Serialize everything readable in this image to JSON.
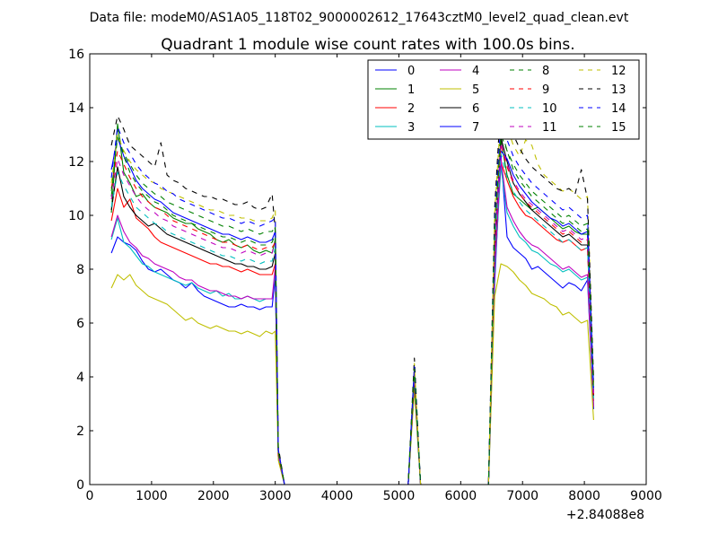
{
  "chart_data": {
    "type": "line",
    "suptitle": "Data file: modeM0/AS1A05_118T02_9000002612_17643cztM0_level2_quad_clean.evt",
    "title": "Quadrant 1 module wise count rates with 100.0s bins.",
    "xlabel": "",
    "ylabel": "",
    "x_offset_label": "+2.84088e8",
    "xlim": [
      0,
      9000
    ],
    "ylim": [
      0,
      16
    ],
    "x_ticks": [
      0,
      1000,
      2000,
      3000,
      4000,
      5000,
      6000,
      7000,
      8000,
      9000
    ],
    "y_ticks": [
      0,
      2,
      4,
      6,
      8,
      10,
      12,
      14,
      16
    ],
    "x": [
      350,
      450,
      550,
      650,
      750,
      850,
      950,
      1050,
      1150,
      1250,
      1350,
      1450,
      1550,
      1650,
      1750,
      1850,
      1950,
      2050,
      2150,
      2250,
      2350,
      2450,
      2550,
      2650,
      2750,
      2850,
      2950,
      3000,
      3050,
      3150,
      3250,
      5150,
      5250,
      5350,
      6450,
      6550,
      6650,
      6750,
      6850,
      6950,
      7050,
      7150,
      7250,
      7350,
      7450,
      7550,
      7650,
      7750,
      7850,
      7950,
      8050,
      8150
    ],
    "legend": {
      "location": "top-right",
      "columns": 4
    },
    "series": [
      {
        "name": "0",
        "color": "#0000ff",
        "dash": "solid",
        "values": [
          8.6,
          9.2,
          9.0,
          8.9,
          8.7,
          8.3,
          8.0,
          7.9,
          8.0,
          7.8,
          7.6,
          7.5,
          7.3,
          7.5,
          7.2,
          7.0,
          6.9,
          6.8,
          6.7,
          6.6,
          6.6,
          6.7,
          6.6,
          6.6,
          6.5,
          6.6,
          6.6,
          7.7,
          1.0,
          0.0,
          0.0,
          0.0,
          3.8,
          0.0,
          0.0,
          7.5,
          12.2,
          9.2,
          8.8,
          8.6,
          8.4,
          8.0,
          8.1,
          7.9,
          7.7,
          7.5,
          7.3,
          7.5,
          7.4,
          7.2,
          7.6,
          2.8
        ]
      },
      {
        "name": "1",
        "color": "#008000",
        "dash": "solid",
        "values": [
          10.1,
          13.4,
          11.6,
          11.2,
          10.7,
          10.8,
          10.5,
          10.3,
          10.2,
          10.1,
          9.9,
          9.8,
          9.7,
          9.7,
          9.5,
          9.4,
          9.3,
          9.1,
          9.0,
          9.1,
          8.9,
          8.8,
          8.9,
          8.7,
          8.6,
          8.7,
          8.6,
          9.1,
          1.1,
          0.0,
          0.0,
          0.0,
          4.0,
          0.0,
          0.0,
          8.7,
          12.8,
          11.5,
          10.8,
          10.6,
          10.4,
          10.2,
          10.3,
          10.1,
          9.9,
          9.7,
          9.5,
          9.6,
          9.4,
          9.3,
          9.3,
          3.3
        ]
      },
      {
        "name": "2",
        "color": "#ff0000",
        "dash": "solid",
        "values": [
          9.8,
          11.0,
          10.3,
          10.6,
          9.9,
          9.7,
          9.5,
          9.2,
          9.0,
          8.9,
          8.8,
          8.7,
          8.6,
          8.5,
          8.4,
          8.3,
          8.2,
          8.2,
          8.1,
          8.1,
          8.0,
          7.9,
          8.0,
          7.9,
          7.8,
          7.8,
          7.8,
          8.2,
          1.0,
          0.0,
          0.0,
          0.0,
          3.9,
          0.0,
          0.0,
          8.4,
          12.0,
          11.3,
          10.7,
          10.3,
          10.0,
          9.9,
          9.7,
          9.5,
          9.3,
          9.1,
          9.0,
          9.1,
          8.9,
          8.7,
          8.8,
          3.1
        ]
      },
      {
        "name": "3",
        "color": "#00bfbf",
        "dash": "solid",
        "values": [
          9.1,
          9.9,
          9.0,
          8.8,
          8.5,
          8.2,
          8.1,
          7.9,
          7.8,
          7.7,
          7.6,
          7.5,
          7.4,
          7.5,
          7.3,
          7.2,
          7.1,
          7.2,
          7.0,
          7.1,
          6.9,
          6.9,
          7.0,
          6.9,
          6.8,
          6.9,
          6.9,
          7.9,
          1.0,
          0.0,
          0.0,
          0.0,
          3.8,
          0.0,
          0.0,
          7.8,
          11.8,
          10.1,
          9.6,
          9.2,
          9.0,
          8.7,
          8.6,
          8.4,
          8.2,
          8.1,
          7.9,
          8.0,
          7.8,
          7.6,
          7.7,
          2.9
        ]
      },
      {
        "name": "4",
        "color": "#bf00bf",
        "dash": "solid",
        "values": [
          9.2,
          10.0,
          9.4,
          9.0,
          8.8,
          8.5,
          8.4,
          8.2,
          8.1,
          8.0,
          7.9,
          7.7,
          7.6,
          7.6,
          7.4,
          7.3,
          7.2,
          7.2,
          7.1,
          7.0,
          7.0,
          6.9,
          7.0,
          6.9,
          6.9,
          6.9,
          6.9,
          8.1,
          1.0,
          0.0,
          0.0,
          0.0,
          3.9,
          0.0,
          0.0,
          8.0,
          12.1,
          10.3,
          9.8,
          9.4,
          9.1,
          8.9,
          8.8,
          8.6,
          8.4,
          8.2,
          8.0,
          8.1,
          7.9,
          7.7,
          7.8,
          2.9
        ]
      },
      {
        "name": "5",
        "color": "#bfbf00",
        "dash": "solid",
        "values": [
          7.3,
          7.8,
          7.6,
          7.8,
          7.4,
          7.2,
          7.0,
          6.9,
          6.8,
          6.7,
          6.5,
          6.3,
          6.1,
          6.2,
          6.0,
          5.9,
          5.8,
          5.9,
          5.8,
          5.7,
          5.7,
          5.6,
          5.7,
          5.6,
          5.5,
          5.7,
          5.6,
          5.7,
          0.9,
          0.0,
          0.0,
          0.0,
          3.5,
          0.0,
          0.0,
          7.0,
          8.2,
          8.1,
          7.9,
          7.6,
          7.4,
          7.1,
          7.0,
          6.9,
          6.7,
          6.6,
          6.3,
          6.4,
          6.2,
          6.0,
          6.1,
          2.4
        ]
      },
      {
        "name": "6",
        "color": "#000000",
        "dash": "solid",
        "values": [
          10.2,
          11.8,
          10.7,
          10.3,
          10.0,
          9.8,
          9.6,
          9.7,
          9.5,
          9.3,
          9.2,
          9.1,
          9.0,
          8.9,
          8.8,
          8.7,
          8.6,
          8.5,
          8.4,
          8.3,
          8.2,
          8.2,
          8.1,
          8.1,
          8.0,
          8.0,
          8.1,
          8.6,
          1.1,
          0.0,
          0.0,
          0.0,
          3.9,
          0.0,
          0.0,
          8.8,
          12.9,
          12.0,
          11.2,
          10.8,
          10.5,
          10.2,
          10.0,
          9.8,
          9.6,
          9.4,
          9.2,
          9.3,
          9.1,
          8.9,
          8.9,
          3.3
        ]
      },
      {
        "name": "7",
        "color": "#0000ff",
        "dash": "solid",
        "values": [
          11.7,
          12.9,
          12.2,
          11.8,
          11.3,
          11.0,
          10.8,
          10.6,
          10.5,
          10.3,
          10.1,
          10.0,
          9.9,
          9.8,
          9.7,
          9.6,
          9.5,
          9.4,
          9.3,
          9.3,
          9.2,
          9.1,
          9.2,
          9.1,
          9.0,
          9.0,
          9.1,
          9.4,
          1.2,
          0.0,
          0.0,
          0.0,
          4.2,
          0.0,
          0.0,
          9.2,
          12.4,
          12.1,
          11.5,
          11.1,
          10.8,
          10.5,
          10.3,
          10.1,
          9.9,
          9.8,
          9.6,
          9.7,
          9.5,
          9.3,
          9.4,
          3.4
        ]
      },
      {
        "name": "8",
        "color": "#008000",
        "dash": "dashed",
        "values": [
          10.7,
          13.2,
          12.2,
          11.6,
          11.2,
          10.9,
          10.7,
          10.5,
          10.4,
          10.2,
          10.0,
          9.9,
          9.8,
          9.7,
          9.6,
          9.5,
          9.4,
          9.3,
          9.2,
          9.2,
          9.1,
          9.0,
          9.1,
          9.0,
          8.9,
          8.9,
          9.0,
          9.3,
          1.2,
          0.0,
          0.0,
          0.0,
          4.3,
          0.0,
          0.0,
          9.4,
          13.2,
          12.4,
          11.7,
          11.3,
          11.0,
          10.7,
          10.5,
          10.3,
          10.1,
          9.9,
          9.7,
          9.8,
          9.6,
          9.4,
          9.5,
          3.5
        ]
      },
      {
        "name": "9",
        "color": "#ff0000",
        "dash": "dashed",
        "values": [
          11.0,
          12.4,
          11.9,
          11.4,
          11.0,
          10.7,
          10.5,
          10.3,
          10.2,
          10.0,
          9.8,
          9.7,
          9.6,
          9.5,
          9.4,
          9.3,
          9.2,
          9.1,
          9.0,
          9.0,
          8.9,
          8.8,
          8.9,
          8.8,
          8.7,
          8.8,
          8.8,
          9.0,
          1.1,
          0.0,
          0.0,
          0.0,
          4.1,
          0.0,
          0.0,
          9.0,
          12.6,
          11.8,
          11.2,
          10.8,
          10.5,
          10.3,
          10.1,
          9.9,
          9.7,
          9.5,
          9.3,
          9.4,
          9.2,
          9.0,
          9.1,
          3.3
        ]
      },
      {
        "name": "10",
        "color": "#00bfbf",
        "dash": "dashed",
        "values": [
          10.3,
          11.6,
          11.1,
          10.7,
          10.3,
          10.1,
          9.9,
          9.7,
          9.6,
          9.4,
          9.3,
          9.2,
          9.1,
          9.0,
          8.9,
          8.8,
          8.7,
          8.6,
          8.5,
          8.5,
          8.4,
          8.3,
          8.4,
          8.3,
          8.2,
          8.3,
          8.3,
          8.8,
          1.1,
          0.0,
          0.0,
          0.0,
          4.0,
          0.0,
          0.0,
          8.9,
          12.3,
          11.4,
          10.9,
          10.5,
          10.2,
          10.0,
          9.8,
          9.6,
          9.4,
          9.2,
          9.0,
          9.1,
          8.9,
          8.7,
          8.8,
          3.2
        ]
      },
      {
        "name": "11",
        "color": "#bf00bf",
        "dash": "dashed",
        "values": [
          10.6,
          12.1,
          11.5,
          11.1,
          10.7,
          10.4,
          10.2,
          10.1,
          9.9,
          9.8,
          9.6,
          9.5,
          9.4,
          9.3,
          9.2,
          9.1,
          9.0,
          8.9,
          8.8,
          8.8,
          8.7,
          8.6,
          8.7,
          8.6,
          8.5,
          8.6,
          8.6,
          9.0,
          1.1,
          0.0,
          0.0,
          0.0,
          4.1,
          0.0,
          0.0,
          9.1,
          12.7,
          11.9,
          11.3,
          10.9,
          10.6,
          10.4,
          10.2,
          10.0,
          9.8,
          9.6,
          9.4,
          9.5,
          9.3,
          9.1,
          9.2,
          3.4
        ]
      },
      {
        "name": "12",
        "color": "#bfbf00",
        "dash": "dashed",
        "values": [
          11.2,
          13.0,
          12.4,
          12.0,
          11.7,
          11.5,
          11.3,
          11.2,
          11.0,
          10.9,
          10.8,
          10.7,
          10.6,
          10.5,
          10.4,
          10.3,
          10.2,
          10.2,
          10.1,
          10.0,
          10.0,
          9.9,
          9.9,
          9.8,
          9.8,
          9.8,
          9.9,
          10.2,
          1.3,
          0.0,
          0.0,
          0.0,
          4.5,
          0.0,
          0.0,
          10.1,
          13.8,
          13.3,
          12.6,
          12.2,
          12.8,
          12.6,
          11.9,
          11.5,
          11.3,
          11.1,
          10.9,
          11.0,
          10.8,
          10.6,
          10.7,
          3.8
        ]
      },
      {
        "name": "13",
        "color": "#000000",
        "dash": "dashed",
        "values": [
          12.6,
          13.7,
          13.2,
          12.6,
          12.4,
          12.2,
          12.0,
          11.8,
          12.7,
          11.5,
          11.3,
          11.2,
          11.0,
          10.9,
          10.8,
          10.7,
          10.7,
          10.6,
          10.6,
          10.5,
          10.4,
          10.4,
          10.5,
          10.3,
          10.2,
          10.3,
          10.8,
          9.4,
          1.4,
          0.0,
          0.0,
          0.0,
          4.7,
          0.0,
          0.0,
          10.3,
          14.3,
          13.5,
          13.0,
          12.5,
          12.1,
          11.8,
          11.6,
          11.4,
          11.2,
          11.0,
          10.9,
          11.0,
          10.8,
          11.7,
          10.6,
          3.9
        ]
      },
      {
        "name": "14",
        "color": "#0000ff",
        "dash": "dashed",
        "values": [
          11.4,
          13.3,
          12.7,
          12.3,
          11.9,
          11.6,
          11.4,
          11.2,
          11.1,
          10.9,
          10.8,
          10.6,
          10.5,
          10.4,
          10.3,
          10.2,
          10.1,
          10.0,
          9.9,
          9.9,
          9.8,
          9.7,
          9.8,
          9.7,
          9.6,
          9.7,
          9.8,
          9.9,
          1.3,
          0.0,
          0.0,
          0.0,
          4.4,
          0.0,
          0.0,
          9.9,
          13.5,
          12.8,
          12.2,
          11.8,
          11.5,
          11.2,
          11.0,
          10.8,
          10.6,
          10.4,
          10.2,
          10.3,
          10.1,
          9.9,
          10.0,
          3.6
        ]
      },
      {
        "name": "15",
        "color": "#008000",
        "dash": "dashed",
        "values": [
          10.9,
          12.9,
          12.3,
          11.9,
          11.5,
          11.2,
          11.0,
          10.8,
          10.7,
          10.5,
          10.4,
          10.3,
          10.2,
          10.1,
          10.0,
          9.9,
          9.8,
          9.7,
          9.6,
          9.6,
          9.5,
          9.4,
          9.5,
          9.4,
          9.3,
          9.4,
          9.4,
          9.6,
          1.2,
          0.0,
          0.0,
          0.0,
          4.3,
          0.0,
          0.0,
          9.6,
          13.0,
          12.4,
          11.9,
          11.5,
          11.2,
          10.9,
          10.7,
          10.5,
          10.3,
          10.1,
          9.9,
          10.0,
          9.8,
          9.6,
          9.7,
          3.5
        ]
      }
    ]
  }
}
